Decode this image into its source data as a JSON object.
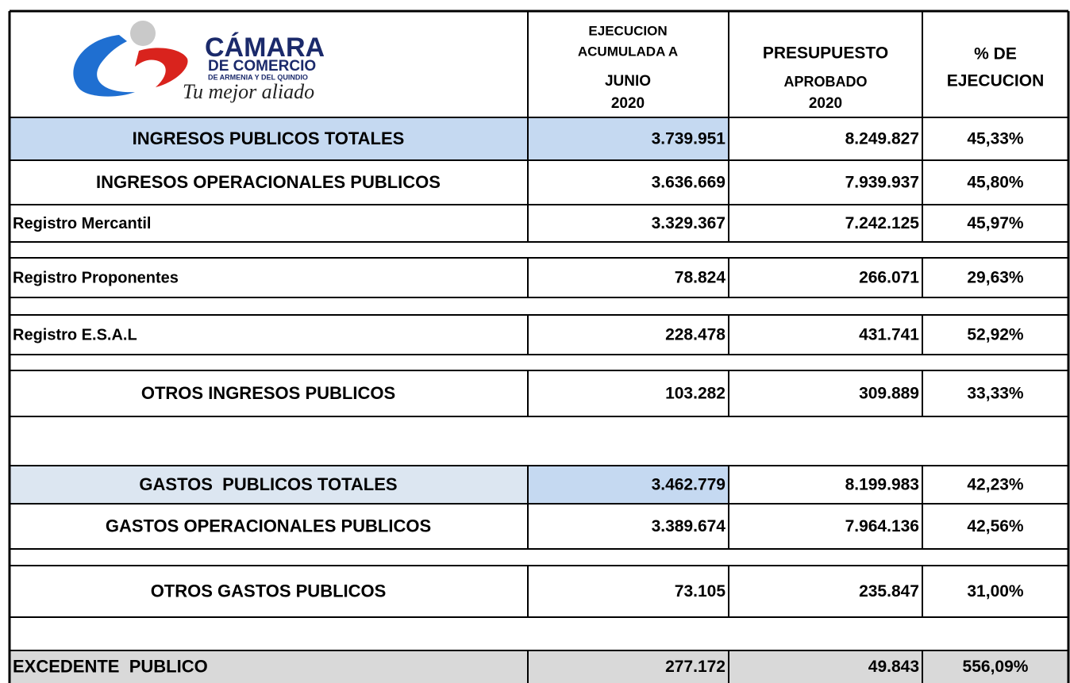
{
  "logo": {
    "name": "CÁMARA",
    "line2": "DE COMERCIO",
    "line3": "DE ARMENIA Y DEL QUINDIO",
    "slogan": "Tu mejor aliado"
  },
  "table": {
    "header": [
      [
        "EJECUCION",
        "ACUMULADA A",
        "JUNIO",
        "2020"
      ],
      [
        "PRESUPUESTO",
        "APROBADO",
        "2020"
      ],
      [
        "% DE",
        "EJECUCION"
      ]
    ],
    "rows": [
      [
        "INGRESOS PUBLICOS TOTALES",
        "3.739.951",
        "8.249.827",
        "45,33%"
      ],
      [
        "INGRESOS OPERACIONALES PUBLICOS",
        "3.636.669",
        "7.939.937",
        "45,80%"
      ],
      [
        "Registro Mercantil",
        "3.329.367",
        "7.242.125",
        "45,97%"
      ],
      [
        "Registro Proponentes",
        "78.824",
        "266.071",
        "29,63%"
      ],
      [
        "Registro E.S.A.L",
        "228.478",
        "431.741",
        "52,92%"
      ],
      [
        "OTROS INGRESOS PUBLICOS",
        "103.282",
        "309.889",
        "33,33%"
      ],
      [
        "GASTOS  PUBLICOS TOTALES",
        "3.462.779",
        "8.199.983",
        "42,23%"
      ],
      [
        "GASTOS OPERACIONALES PUBLICOS",
        "3.389.674",
        "7.964.136",
        "42,56%"
      ],
      [
        "OTROS GASTOS PUBLICOS",
        "73.105",
        "235.847",
        "31,00%"
      ],
      [
        "EXCEDENTE  PUBLICO",
        "277.172",
        "49.843",
        "556,09%"
      ]
    ]
  }
}
